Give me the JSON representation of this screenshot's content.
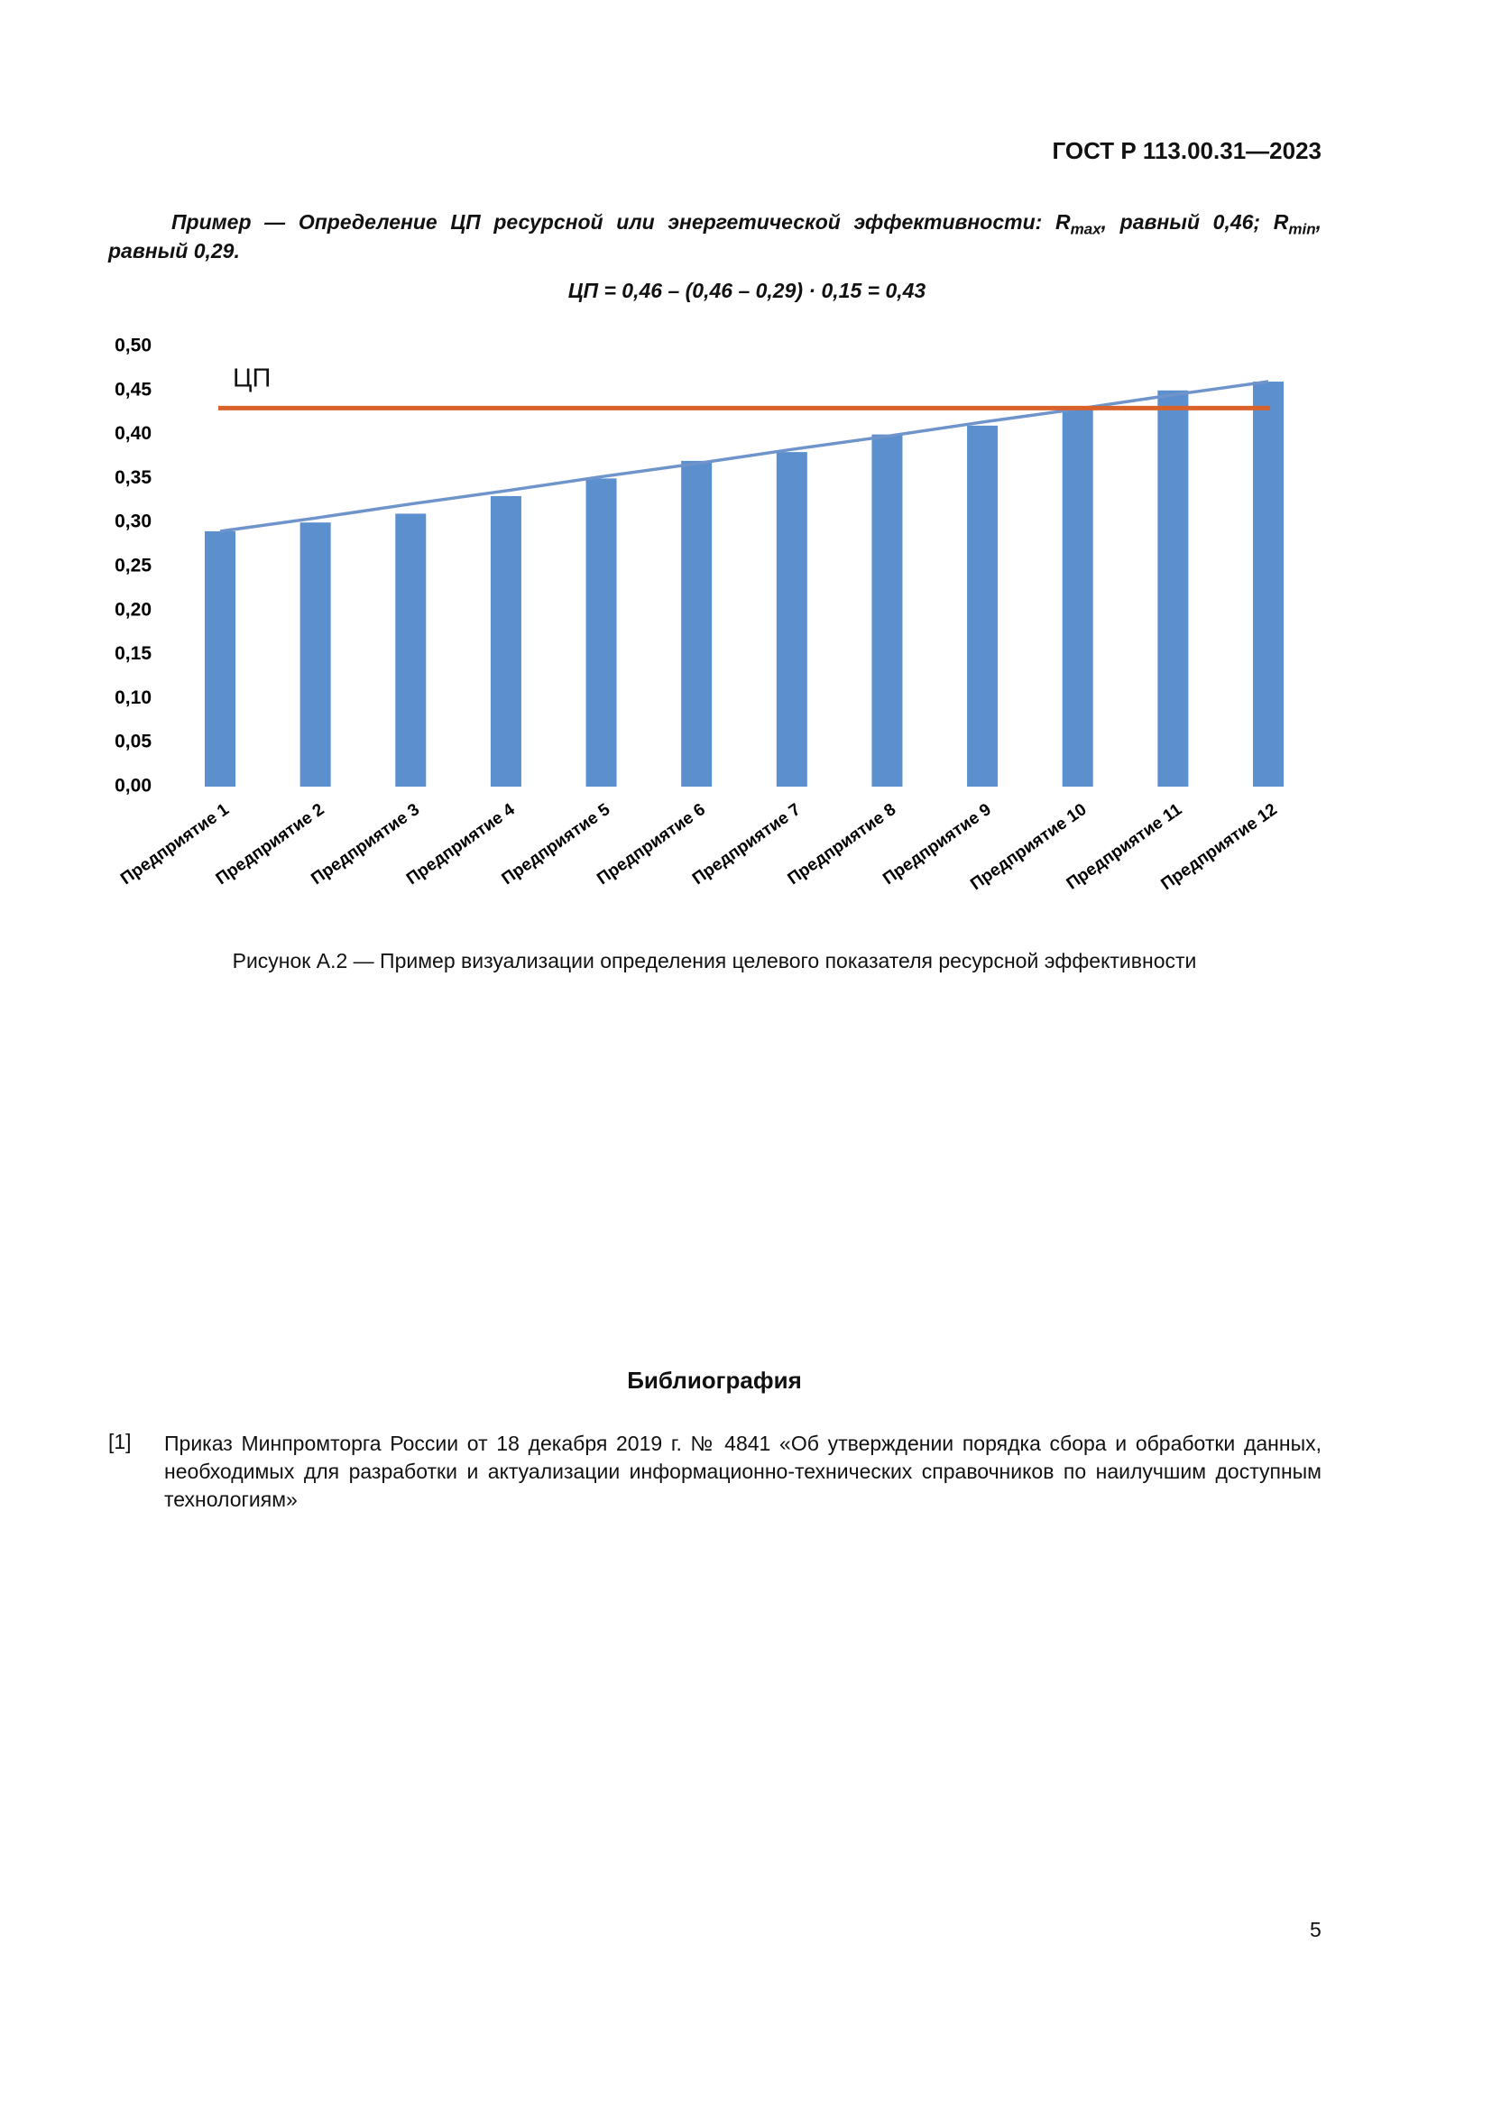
{
  "header": {
    "title": "ГОСТ Р 113.00.31—2023"
  },
  "example": {
    "lead": "Пример — Определение ЦП ресурсной или энергетической эффективности: R",
    "sub_1": "max",
    "mid": ", равный 0,46; R",
    "sub_2": "min",
    "end": ", равный 0,29."
  },
  "formula": "ЦП = 0,46 – (0,46 – 0,29) · 0,15 = 0,43",
  "chart_data": {
    "type": "bar",
    "categories": [
      "Предприятие 1",
      "Предприятие 2",
      "Предприятие 3",
      "Предприятие 4",
      "Предприятие 5",
      "Предприятие 6",
      "Предприятие 7",
      "Предприятие 8",
      "Предприятие 9",
      "Предприятие 10",
      "Предприятие 11",
      "Предприятие 12"
    ],
    "values": [
      0.29,
      0.3,
      0.31,
      0.33,
      0.35,
      0.37,
      0.38,
      0.4,
      0.41,
      0.43,
      0.45,
      0.46
    ],
    "color": "#5b8fce",
    "trend": {
      "color": "#6f94cc",
      "values": [
        0.29,
        0.305,
        0.321,
        0.336,
        0.352,
        0.367,
        0.383,
        0.398,
        0.414,
        0.429,
        0.445,
        0.46
      ]
    },
    "target": {
      "label": "ЦП",
      "value": 0.43,
      "color": "#d9622b"
    },
    "ylim": [
      0,
      0.5
    ],
    "yticks": [
      {
        "value": 0,
        "label": "0,00"
      },
      {
        "value": 0.05,
        "label": "0,05"
      },
      {
        "value": 0.1,
        "label": "0,10"
      },
      {
        "value": 0.15,
        "label": "0,15"
      },
      {
        "value": 0.2,
        "label": "0,20"
      },
      {
        "value": 0.25,
        "label": "0,25"
      },
      {
        "value": 0.3,
        "label": "0,30"
      },
      {
        "value": 0.35,
        "label": "0,35"
      },
      {
        "value": 0.4,
        "label": "0,40"
      },
      {
        "value": 0.45,
        "label": "0,45"
      },
      {
        "value": 0.5,
        "label": "0,50"
      }
    ],
    "grid": false
  },
  "caption": "Рисунок А.2 — Пример визуализации определения целевого показателя ресурсной эффективности",
  "bibliography": {
    "title": "Библиография",
    "items": [
      {
        "number": "[1]",
        "text": "Приказ Минпромторга России от 18 декабря 2019 г. № 4841 «Об утверждении порядка сбора и обработки данных, необходимых для разработки и актуализации информационно-технических справочников по наилучшим доступным технологиям»"
      }
    ]
  },
  "page_number": "5"
}
